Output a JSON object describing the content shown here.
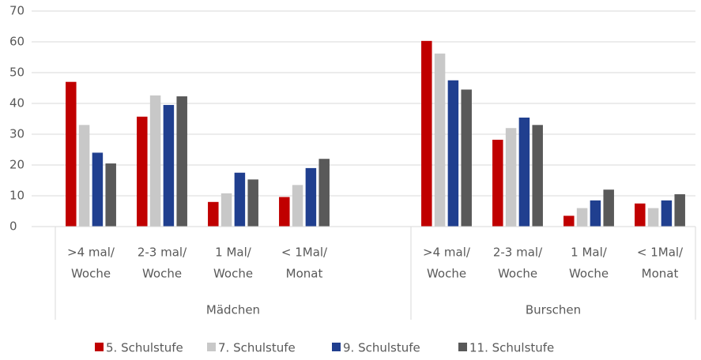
{
  "chart_data": {
    "type": "bar",
    "groups": [
      {
        "name": "Mädchen",
        "categories": [
          [
            ">4 mal/",
            "Woche"
          ],
          [
            "2-3 mal/",
            "Woche"
          ],
          [
            "1 Mal/",
            "Woche"
          ],
          [
            "< 1Mal/",
            "Monat"
          ],
          null
        ]
      },
      {
        "name": "Burschen",
        "categories": [
          [
            ">4 mal/",
            "Woche"
          ],
          [
            "2-3 mal/",
            "Woche"
          ],
          [
            "1 Mal/",
            "Woche"
          ],
          [
            "< 1Mal/",
            "Monat"
          ]
        ]
      }
    ],
    "series": [
      {
        "name": "5. Schulstufe",
        "color": "#c00000",
        "values": [
          47,
          35.7,
          8,
          9.6,
          null,
          60.3,
          28.2,
          3.5,
          7.5
        ]
      },
      {
        "name": "7. Schulstufe",
        "color": "#c8c8c8",
        "values": [
          33,
          42.6,
          10.8,
          13.5,
          null,
          56.2,
          32,
          6,
          6
        ]
      },
      {
        "name": "9. Schulstufe",
        "color": "#203f8f",
        "values": [
          24,
          39.5,
          17.5,
          19,
          null,
          47.5,
          35.4,
          8.5,
          8.5
        ]
      },
      {
        "name": "11. Schulstufe",
        "color": "#595959",
        "values": [
          20.5,
          42.3,
          15.3,
          22,
          null,
          44.5,
          33,
          12,
          10.5
        ]
      }
    ],
    "ylim": [
      0,
      70
    ],
    "yticks": [
      0,
      10,
      20,
      30,
      40,
      50,
      60,
      70
    ],
    "grid": true,
    "legend": "bottom"
  }
}
